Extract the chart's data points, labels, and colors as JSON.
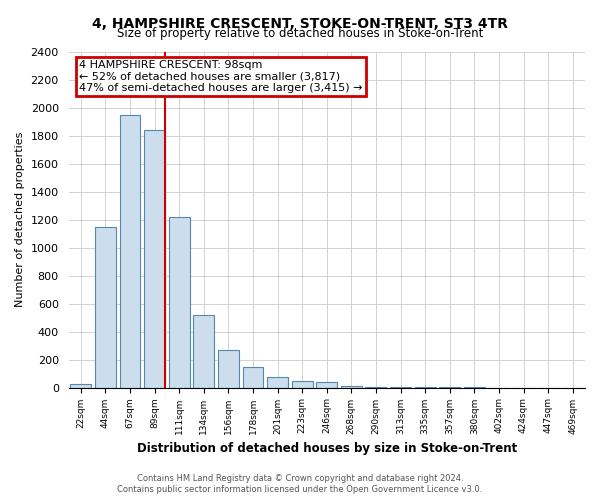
{
  "title": "4, HAMPSHIRE CRESCENT, STOKE-ON-TRENT, ST3 4TR",
  "subtitle": "Size of property relative to detached houses in Stoke-on-Trent",
  "xlabel": "Distribution of detached houses by size in Stoke-on-Trent",
  "ylabel": "Number of detached properties",
  "bar_labels": [
    "22sqm",
    "44sqm",
    "67sqm",
    "89sqm",
    "111sqm",
    "134sqm",
    "156sqm",
    "178sqm",
    "201sqm",
    "223sqm",
    "246sqm",
    "268sqm",
    "290sqm",
    "313sqm",
    "335sqm",
    "357sqm",
    "380sqm",
    "402sqm",
    "424sqm",
    "447sqm",
    "469sqm"
  ],
  "bar_heights": [
    25,
    1150,
    1950,
    1840,
    1220,
    520,
    265,
    148,
    78,
    50,
    40,
    12,
    6,
    3,
    2,
    1,
    1,
    0,
    0,
    0,
    0
  ],
  "bar_color": "#ccdded",
  "bar_edge_color": "#5588aa",
  "annotation_box_text": "4 HAMPSHIRE CRESCENT: 98sqm\n← 52% of detached houses are smaller (3,817)\n47% of semi-detached houses are larger (3,415) →",
  "red_line_color": "#cc0000",
  "annotation_box_edge_color": "#cc0000",
  "ylim": [
    0,
    2400
  ],
  "yticks": [
    0,
    200,
    400,
    600,
    800,
    1000,
    1200,
    1400,
    1600,
    1800,
    2000,
    2200,
    2400
  ],
  "grid_color": "#cccccc",
  "background_color": "#ffffff",
  "footer_line1": "Contains HM Land Registry data © Crown copyright and database right 2024.",
  "footer_line2": "Contains public sector information licensed under the Open Government Licence v3.0."
}
